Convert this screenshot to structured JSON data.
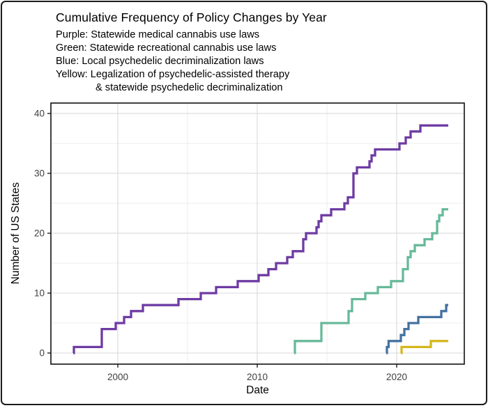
{
  "chart_data": {
    "type": "line",
    "subtype": "cumulative_step",
    "title": "Cumulative Frequency of Policy Changes by Year",
    "subtitle_lines": [
      "Purple: Statewide medical cannabis use laws",
      "Green: Statewide recreational cannabis use laws",
      "Blue: Local psychedelic decriminalization laws",
      "Yellow: Legalization of psychedelic-assisted therapy",
      "& statewide psychedelic decriminalization"
    ],
    "xlabel": "Date",
    "ylabel": "Number of US States",
    "x_domain": [
      1995.2,
      2024.85
    ],
    "y_domain": [
      -1.86,
      41.74
    ],
    "x_major_ticks": [
      2000,
      2010,
      2020
    ],
    "x_minor_gridlines": [
      2005,
      2015
    ],
    "y_major_ticks": [
      0,
      10,
      20,
      30,
      40
    ],
    "y_minor_gridlines": [
      5,
      15,
      25,
      35
    ],
    "legend_position": "subtitle-text",
    "grid": "major and minor gridlines on, white background, black panel border",
    "colors": {
      "purple": "#6e3ba3",
      "green": "#67b99a",
      "blue": "#4472a0",
      "yellow": "#d4b71d",
      "gridline_major": "#d9d9d9",
      "gridline_minor": "#ededed",
      "panel_border": "#111111",
      "tick_label": "#404040"
    },
    "series": [
      {
        "name": "Statewide medical cannabis use laws",
        "color_word": "purple",
        "color": "#6e3ba3",
        "start_year": 1996.8,
        "end_year": 2023.7,
        "final_value": 38,
        "steps": [
          [
            1996.85,
            1
          ],
          [
            1998.85,
            4
          ],
          [
            1999.85,
            5
          ],
          [
            2000.45,
            6
          ],
          [
            2000.95,
            7
          ],
          [
            2001.8,
            8
          ],
          [
            2004.35,
            9
          ],
          [
            2005.95,
            10
          ],
          [
            2007.05,
            11
          ],
          [
            2008.6,
            12
          ],
          [
            2010.1,
            13
          ],
          [
            2010.8,
            14
          ],
          [
            2011.35,
            15
          ],
          [
            2012.15,
            16
          ],
          [
            2012.55,
            17
          ],
          [
            2013.3,
            19
          ],
          [
            2013.5,
            20
          ],
          [
            2014.25,
            21
          ],
          [
            2014.4,
            22
          ],
          [
            2014.6,
            23
          ],
          [
            2015.3,
            24
          ],
          [
            2016.25,
            25
          ],
          [
            2016.5,
            26
          ],
          [
            2016.9,
            30
          ],
          [
            2017.15,
            31
          ],
          [
            2018.05,
            32
          ],
          [
            2018.2,
            33
          ],
          [
            2018.45,
            34
          ],
          [
            2020.2,
            35
          ],
          [
            2020.65,
            36
          ],
          [
            2021.0,
            37
          ],
          [
            2021.7,
            38
          ]
        ]
      },
      {
        "name": "Statewide recreational cannabis use laws",
        "color_word": "green",
        "color": "#67b99a",
        "start_year": 2012.65,
        "end_year": 2023.7,
        "final_value": 24,
        "steps": [
          [
            2012.7,
            2
          ],
          [
            2014.6,
            5
          ],
          [
            2016.55,
            7
          ],
          [
            2016.8,
            9
          ],
          [
            2017.75,
            10
          ],
          [
            2018.65,
            11
          ],
          [
            2019.6,
            12
          ],
          [
            2020.45,
            14
          ],
          [
            2020.8,
            16
          ],
          [
            2021.0,
            17
          ],
          [
            2021.3,
            18
          ],
          [
            2022.0,
            19
          ],
          [
            2022.55,
            20
          ],
          [
            2022.9,
            22
          ],
          [
            2023.05,
            23
          ],
          [
            2023.3,
            24
          ]
        ]
      },
      {
        "name": "Local psychedelic decriminalization laws",
        "color_word": "blue",
        "color": "#4472a0",
        "start_year": 2019.25,
        "end_year": 2023.7,
        "final_value": 8,
        "steps": [
          [
            2019.3,
            1
          ],
          [
            2019.42,
            2
          ],
          [
            2020.3,
            3
          ],
          [
            2020.55,
            4
          ],
          [
            2020.85,
            5
          ],
          [
            2021.55,
            6
          ],
          [
            2023.2,
            7
          ],
          [
            2023.55,
            8
          ]
        ]
      },
      {
        "name": "Legalization of psychedelic-assisted therapy & statewide psychedelic decriminalization",
        "color_word": "yellow",
        "color": "#d4b71d",
        "start_year": 2020.3,
        "end_year": 2023.7,
        "final_value": 2,
        "steps": [
          [
            2020.35,
            1
          ],
          [
            2022.45,
            2
          ]
        ]
      }
    ]
  }
}
